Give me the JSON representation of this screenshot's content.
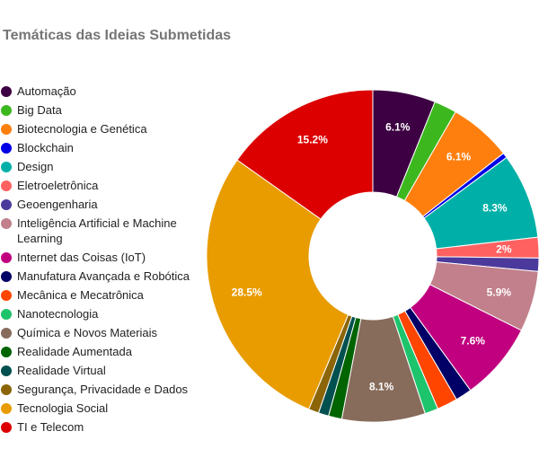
{
  "chart_data": {
    "type": "pie",
    "donut": true,
    "title": "Temáticas das Ideias Submetidas",
    "legend_position": "left",
    "slices": [
      {
        "name": "Automação",
        "value": 6.1,
        "color": "#3d0042",
        "label": "6.1%"
      },
      {
        "name": "Big Data",
        "value": 2.2,
        "color": "#3cb81e",
        "label": ""
      },
      {
        "name": "Biotecnologia e Genética",
        "value": 6.1,
        "color": "#ff7f0e",
        "label": "6.1%"
      },
      {
        "name": "Blockchain",
        "value": 0.5,
        "color": "#0000e6",
        "label": ""
      },
      {
        "name": "Design",
        "value": 8.3,
        "color": "#00b0a8",
        "label": "8.3%"
      },
      {
        "name": "Eletroeletrônica",
        "value": 2.0,
        "color": "#ff6161",
        "label": "2%"
      },
      {
        "name": "Geoengenharia",
        "value": 1.3,
        "color": "#4b3a9c",
        "label": ""
      },
      {
        "name": "Inteligência Artificial e Machine Learning",
        "value": 5.9,
        "color": "#c1808b",
        "label": "5.9%"
      },
      {
        "name": "Internet das Coisas (IoT)",
        "value": 7.6,
        "color": "#c0007f",
        "label": "7.6%"
      },
      {
        "name": "Manufatura Avançada e Robótica",
        "value": 1.6,
        "color": "#000066",
        "label": ""
      },
      {
        "name": "Mecânica e Mecatrônica",
        "value": 2.0,
        "color": "#ff4500",
        "label": ""
      },
      {
        "name": "Nanotecnologia",
        "value": 1.3,
        "color": "#1dc46c",
        "label": ""
      },
      {
        "name": "Química e Novos Materiais",
        "value": 8.1,
        "color": "#876b5b",
        "label": "8.1%"
      },
      {
        "name": "Realidade Aumentada",
        "value": 1.3,
        "color": "#006400",
        "label": ""
      },
      {
        "name": "Realidade Virtual",
        "value": 1.0,
        "color": "#00504f",
        "label": ""
      },
      {
        "name": "Segurança, Privacidade e Dados",
        "value": 1.0,
        "color": "#8b6508",
        "label": ""
      },
      {
        "name": "Tecnologia Social",
        "value": 28.5,
        "color": "#e89c00",
        "label": "28.5%"
      },
      {
        "name": "TI e Telecom",
        "value": 15.2,
        "color": "#dc0000",
        "label": "15.2%"
      }
    ]
  }
}
